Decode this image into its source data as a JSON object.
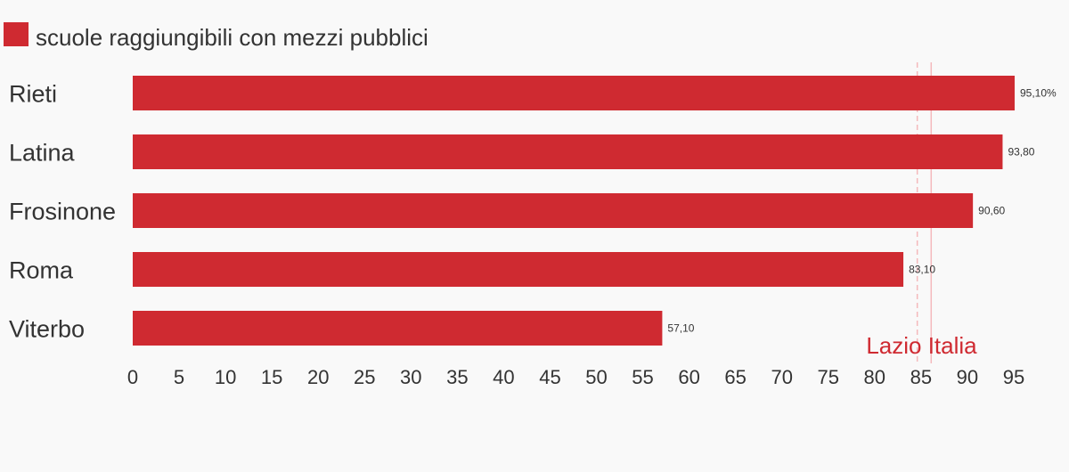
{
  "colors": {
    "bar": "#cf2a31",
    "ref_line": "#f4b9bc",
    "ref_label": "#cf2a31",
    "text": "#333333",
    "background": "#f9f9f9"
  },
  "chart_data": {
    "type": "bar",
    "orientation": "horizontal",
    "categories": [
      "Rieti",
      "Latina",
      "Frosinone",
      "Roma",
      "Viterbo"
    ],
    "series": [
      {
        "name": "scuole raggiungibili con mezzi pubblici",
        "values": [
          95.1,
          93.8,
          90.6,
          83.1,
          57.1
        ]
      }
    ],
    "data_labels": [
      "95,10%",
      "93,80",
      "90,60",
      "83,10",
      "57,10"
    ],
    "xlim": [
      0,
      95
    ],
    "x_ticks": [
      0,
      5,
      10,
      15,
      20,
      25,
      30,
      35,
      40,
      45,
      50,
      55,
      60,
      65,
      70,
      75,
      80,
      85,
      90,
      95
    ],
    "reference_lines": [
      {
        "label": "Lazio",
        "value": 84.6,
        "style": "dashed"
      },
      {
        "label": "Italia",
        "value": 86.1,
        "style": "solid"
      }
    ],
    "legend_position": "top-left",
    "grid": false
  }
}
